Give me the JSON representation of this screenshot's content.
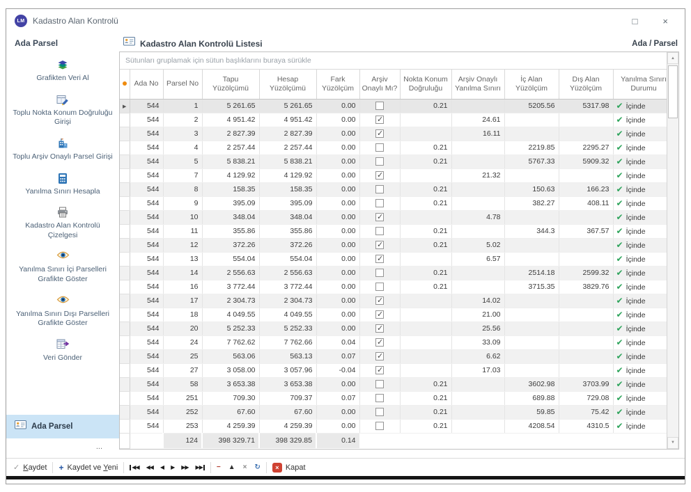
{
  "window": {
    "title": "Kadastro Alan Kontrolü",
    "logo": "LM"
  },
  "icons": {
    "maximize": "□",
    "close": "×",
    "scroll_up": "▲",
    "scroll_down": "▼",
    "row_pointer": "▶",
    "inside_check": "✔",
    "save_check": "✓",
    "add_plus": "+",
    "kapat_x": "×",
    "marker_dot_color": "#ef8b0e",
    "inside_check_color": "#2fa45c",
    "kapat_red": "#cf4232",
    "selected_item_bg": "#cbe4f6"
  },
  "sidebar": {
    "header": "Ada Parsel",
    "items": [
      {
        "label": "Grafikten Veri Al",
        "icon": "layers-icon"
      },
      {
        "label": "Toplu Nokta Konum Doğruluğu Girişi",
        "icon": "point-entry-icon"
      },
      {
        "label": "Toplu Arşiv Onaylı Parsel Girişi",
        "icon": "building-icon"
      },
      {
        "label": "Yanılma Sınırı Hesapla",
        "icon": "calculator-icon"
      },
      {
        "label": "Kadastro Alan Kontrolü Çizelgesi",
        "icon": "printer-icon"
      },
      {
        "label": "Yanılma Sınırı İçi Parselleri Grafikte Göster",
        "icon": "eye-icon"
      },
      {
        "label": "Yanılma Sınırı Dışı Parselleri Grafikte Göster",
        "icon": "eye-icon"
      },
      {
        "label": "Veri Gönder",
        "icon": "send-data-icon"
      }
    ],
    "selected_item": {
      "label": "Ada Parsel",
      "icon": "id-card-icon"
    },
    "overflow": "..."
  },
  "main": {
    "title": "Kadastro Alan Kontrolü Listesi",
    "corner_label": "Ada / Parsel",
    "group_hint": "Sütunları gruplamak için sütun başlıklarını buraya sürükle",
    "table": {
      "columns": [
        {
          "key": "ada",
          "label": "Ada No"
        },
        {
          "key": "parsel",
          "label": "Parsel No"
        },
        {
          "key": "tapu",
          "label": "Tapu Yüzölçümü"
        },
        {
          "key": "hesap",
          "label": "Hesap Yüzölçümü"
        },
        {
          "key": "fark",
          "label": "Fark Yüzölçüm"
        },
        {
          "key": "onay",
          "label": "Arşiv Onaylı Mı?"
        },
        {
          "key": "nokta",
          "label": "Nokta Konum Doğruluğu"
        },
        {
          "key": "sinir",
          "label": "Arşiv Onaylı Yanılma Sınırı"
        },
        {
          "key": "ic",
          "label": "İç Alan Yüzölçüm"
        },
        {
          "key": "dis",
          "label": "Dış Alan Yüzölçüm"
        },
        {
          "key": "durum",
          "label": "Yanılma Sınırı Durumu"
        }
      ],
      "rows": [
        {
          "ada": "544",
          "parsel": "1",
          "tapu": "5 261.65",
          "hesap": "5 261.65",
          "fark": "0.00",
          "onay": false,
          "nokta": "0.21",
          "sinir": "",
          "ic": "5205.56",
          "dis": "5317.98",
          "durum": "İçinde"
        },
        {
          "ada": "544",
          "parsel": "2",
          "tapu": "4 951.42",
          "hesap": "4 951.42",
          "fark": "0.00",
          "onay": true,
          "nokta": "",
          "sinir": "24.61",
          "ic": "",
          "dis": "",
          "durum": "İçinde"
        },
        {
          "ada": "544",
          "parsel": "3",
          "tapu": "2 827.39",
          "hesap": "2 827.39",
          "fark": "0.00",
          "onay": true,
          "nokta": "",
          "sinir": "16.11",
          "ic": "",
          "dis": "",
          "durum": "İçinde"
        },
        {
          "ada": "544",
          "parsel": "4",
          "tapu": "2 257.44",
          "hesap": "2 257.44",
          "fark": "0.00",
          "onay": false,
          "nokta": "0.21",
          "sinir": "",
          "ic": "2219.85",
          "dis": "2295.27",
          "durum": "İçinde"
        },
        {
          "ada": "544",
          "parsel": "5",
          "tapu": "5 838.21",
          "hesap": "5 838.21",
          "fark": "0.00",
          "onay": false,
          "nokta": "0.21",
          "sinir": "",
          "ic": "5767.33",
          "dis": "5909.32",
          "durum": "İçinde"
        },
        {
          "ada": "544",
          "parsel": "7",
          "tapu": "4 129.92",
          "hesap": "4 129.92",
          "fark": "0.00",
          "onay": true,
          "nokta": "",
          "sinir": "21.32",
          "ic": "",
          "dis": "",
          "durum": "İçinde"
        },
        {
          "ada": "544",
          "parsel": "8",
          "tapu": "158.35",
          "hesap": "158.35",
          "fark": "0.00",
          "onay": false,
          "nokta": "0.21",
          "sinir": "",
          "ic": "150.63",
          "dis": "166.23",
          "durum": "İçinde"
        },
        {
          "ada": "544",
          "parsel": "9",
          "tapu": "395.09",
          "hesap": "395.09",
          "fark": "0.00",
          "onay": false,
          "nokta": "0.21",
          "sinir": "",
          "ic": "382.27",
          "dis": "408.11",
          "durum": "İçinde"
        },
        {
          "ada": "544",
          "parsel": "10",
          "tapu": "348.04",
          "hesap": "348.04",
          "fark": "0.00",
          "onay": true,
          "nokta": "",
          "sinir": "4.78",
          "ic": "",
          "dis": "",
          "durum": "İçinde"
        },
        {
          "ada": "544",
          "parsel": "11",
          "tapu": "355.86",
          "hesap": "355.86",
          "fark": "0.00",
          "onay": false,
          "nokta": "0.21",
          "sinir": "",
          "ic": "344.3",
          "dis": "367.57",
          "durum": "İçinde"
        },
        {
          "ada": "544",
          "parsel": "12",
          "tapu": "372.26",
          "hesap": "372.26",
          "fark": "0.00",
          "onay": true,
          "nokta": "0.21",
          "sinir": "5.02",
          "ic": "",
          "dis": "",
          "durum": "İçinde"
        },
        {
          "ada": "544",
          "parsel": "13",
          "tapu": "554.04",
          "hesap": "554.04",
          "fark": "0.00",
          "onay": true,
          "nokta": "",
          "sinir": "6.57",
          "ic": "",
          "dis": "",
          "durum": "İçinde"
        },
        {
          "ada": "544",
          "parsel": "14",
          "tapu": "2 556.63",
          "hesap": "2 556.63",
          "fark": "0.00",
          "onay": false,
          "nokta": "0.21",
          "sinir": "",
          "ic": "2514.18",
          "dis": "2599.32",
          "durum": "İçinde"
        },
        {
          "ada": "544",
          "parsel": "16",
          "tapu": "3 772.44",
          "hesap": "3 772.44",
          "fark": "0.00",
          "onay": false,
          "nokta": "0.21",
          "sinir": "",
          "ic": "3715.35",
          "dis": "3829.76",
          "durum": "İçinde"
        },
        {
          "ada": "544",
          "parsel": "17",
          "tapu": "2 304.73",
          "hesap": "2 304.73",
          "fark": "0.00",
          "onay": true,
          "nokta": "",
          "sinir": "14.02",
          "ic": "",
          "dis": "",
          "durum": "İçinde"
        },
        {
          "ada": "544",
          "parsel": "18",
          "tapu": "4 049.55",
          "hesap": "4 049.55",
          "fark": "0.00",
          "onay": true,
          "nokta": "",
          "sinir": "21.00",
          "ic": "",
          "dis": "",
          "durum": "İçinde"
        },
        {
          "ada": "544",
          "parsel": "20",
          "tapu": "5 252.33",
          "hesap": "5 252.33",
          "fark": "0.00",
          "onay": true,
          "nokta": "",
          "sinir": "25.56",
          "ic": "",
          "dis": "",
          "durum": "İçinde"
        },
        {
          "ada": "544",
          "parsel": "24",
          "tapu": "7 762.62",
          "hesap": "7 762.66",
          "fark": "0.04",
          "onay": true,
          "nokta": "",
          "sinir": "33.09",
          "ic": "",
          "dis": "",
          "durum": "İçinde"
        },
        {
          "ada": "544",
          "parsel": "25",
          "tapu": "563.06",
          "hesap": "563.13",
          "fark": "0.07",
          "onay": true,
          "nokta": "",
          "sinir": "6.62",
          "ic": "",
          "dis": "",
          "durum": "İçinde"
        },
        {
          "ada": "544",
          "parsel": "27",
          "tapu": "3 058.00",
          "hesap": "3 057.96",
          "fark": "-0.04",
          "onay": true,
          "nokta": "",
          "sinir": "17.03",
          "ic": "",
          "dis": "",
          "durum": "İçinde"
        },
        {
          "ada": "544",
          "parsel": "58",
          "tapu": "3 653.38",
          "hesap": "3 653.38",
          "fark": "0.00",
          "onay": false,
          "nokta": "0.21",
          "sinir": "",
          "ic": "3602.98",
          "dis": "3703.99",
          "durum": "İçinde"
        },
        {
          "ada": "544",
          "parsel": "251",
          "tapu": "709.30",
          "hesap": "709.37",
          "fark": "0.07",
          "onay": false,
          "nokta": "0.21",
          "sinir": "",
          "ic": "689.88",
          "dis": "729.08",
          "durum": "İçinde"
        },
        {
          "ada": "544",
          "parsel": "252",
          "tapu": "67.60",
          "hesap": "67.60",
          "fark": "0.00",
          "onay": false,
          "nokta": "0.21",
          "sinir": "",
          "ic": "59.85",
          "dis": "75.42",
          "durum": "İçinde"
        },
        {
          "ada": "544",
          "parsel": "253",
          "tapu": "4 259.39",
          "hesap": "4 259.39",
          "fark": "0.00",
          "onay": false,
          "nokta": "0.21",
          "sinir": "",
          "ic": "4208.54",
          "dis": "4310.5",
          "durum": "İçinde"
        }
      ],
      "summary": {
        "parsel": "124",
        "tapu": "398 329.71",
        "hesap": "398 329.85",
        "fark": "0.14"
      }
    }
  },
  "toolbar": {
    "save_label": "Kaydet",
    "save_accesskey": "K",
    "save_new_label": "Kaydet ve Yeni",
    "save_new_accesskey": "Y",
    "close_label": "Kapat",
    "nav_buttons": [
      {
        "name": "first-record-button",
        "glyph": "◀◀",
        "bar": "left"
      },
      {
        "name": "prev-page-button",
        "glyph": "◀◀"
      },
      {
        "name": "prev-record-button",
        "glyph": "◀"
      },
      {
        "name": "next-record-button",
        "glyph": "▶"
      },
      {
        "name": "next-page-button",
        "glyph": "▶▶"
      },
      {
        "name": "last-record-button",
        "glyph": "▶▶",
        "bar": "right"
      }
    ],
    "edit_buttons": [
      {
        "name": "delete-record-button",
        "glyph": "−",
        "color": "#b03a2e"
      },
      {
        "name": "edit-record-button",
        "glyph": "▲",
        "color": "#303030"
      },
      {
        "name": "cancel-edit-button",
        "glyph": "×",
        "color": "#8a8a8a"
      },
      {
        "name": "refresh-button",
        "glyph": "↻",
        "color": "#3a6fb0"
      }
    ]
  }
}
